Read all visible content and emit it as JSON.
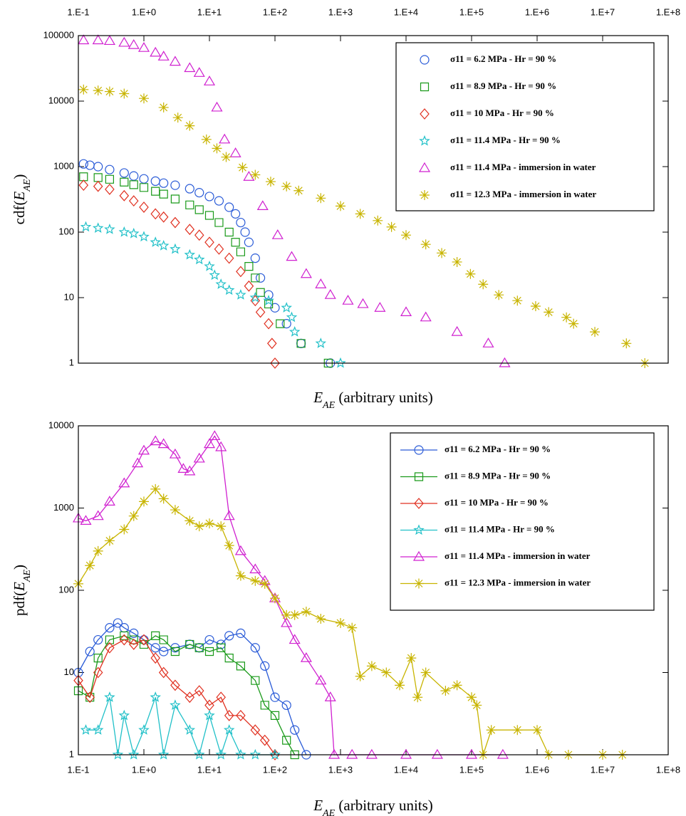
{
  "chart_data": [
    {
      "type": "scatter",
      "log_x": true,
      "log_y": true,
      "x_tick_position": "top",
      "legend_position": "upper right",
      "x_label": [
        "E",
        "AE",
        " (arbitrary units)"
      ],
      "y_label": [
        "cdf(",
        "E",
        "AE",
        ")"
      ],
      "xlim": [
        0.1,
        100000000
      ],
      "ylim": [
        1,
        100000
      ],
      "xticks": [
        {
          "value": 0.1,
          "label": "1.E-1"
        },
        {
          "value": 1,
          "label": "1.E+0"
        },
        {
          "value": 10,
          "label": "1.E+1"
        },
        {
          "value": 100,
          "label": "1.E+2"
        },
        {
          "value": 1000,
          "label": "1.E+3"
        },
        {
          "value": 10000,
          "label": "1.E+4"
        },
        {
          "value": 100000,
          "label": "1.E+5"
        },
        {
          "value": 1000000,
          "label": "1.E+6"
        },
        {
          "value": 10000000,
          "label": "1.E+7"
        },
        {
          "value": 100000000,
          "label": "1.E+8"
        }
      ],
      "yticks": [
        1,
        10,
        100,
        1000,
        10000,
        100000
      ],
      "series": [
        {
          "name": "σ11 = 6.2 MPa - Hr = 90 %",
          "color": "#2a5bd7",
          "marker": "circle",
          "line": false,
          "x": [
            0.12,
            0.15,
            0.2,
            0.3,
            0.5,
            0.7,
            1,
            1.5,
            2,
            3,
            5,
            7,
            10,
            14,
            20,
            25,
            30,
            35,
            40,
            50,
            60,
            80,
            100,
            150,
            250,
            700
          ],
          "values": [
            1100,
            1050,
            1000,
            900,
            800,
            720,
            650,
            600,
            560,
            520,
            460,
            400,
            350,
            300,
            240,
            190,
            140,
            100,
            70,
            40,
            20,
            11,
            7,
            4,
            2,
            1
          ]
        },
        {
          "name": "σ11 = 8.9 MPa - Hr = 90 %",
          "color": "#1a9a1a",
          "marker": "square",
          "line": false,
          "x": [
            0.12,
            0.2,
            0.3,
            0.5,
            0.7,
            1,
            1.5,
            2,
            3,
            5,
            7,
            10,
            14,
            20,
            25,
            30,
            40,
            50,
            60,
            80,
            120,
            250,
            650
          ],
          "values": [
            700,
            680,
            640,
            580,
            530,
            480,
            420,
            380,
            320,
            260,
            220,
            180,
            140,
            100,
            70,
            50,
            30,
            20,
            12,
            8,
            4,
            2,
            1
          ]
        },
        {
          "name": "σ11 = 10 MPa - Hr = 90 %",
          "color": "#e03020",
          "marker": "diamond",
          "line": false,
          "x": [
            0.12,
            0.2,
            0.3,
            0.5,
            0.7,
            1,
            1.5,
            2,
            3,
            5,
            7,
            10,
            14,
            20,
            30,
            40,
            50,
            60,
            80,
            90,
            100
          ],
          "values": [
            520,
            500,
            450,
            360,
            300,
            240,
            190,
            170,
            140,
            110,
            90,
            70,
            55,
            40,
            25,
            15,
            9,
            6,
            4,
            2,
            1
          ]
        },
        {
          "name": "σ11 = 11.4 MPa - Hr = 90 %",
          "color": "#20c0c8",
          "marker": "star",
          "line": false,
          "x": [
            0.13,
            0.2,
            0.3,
            0.5,
            0.7,
            1,
            1.5,
            2,
            3,
            5,
            7,
            10,
            12,
            15,
            20,
            30,
            50,
            80,
            150,
            180,
            200,
            500,
            1000
          ],
          "values": [
            120,
            115,
            110,
            100,
            95,
            85,
            70,
            62,
            55,
            45,
            38,
            30,
            22,
            16,
            13,
            11,
            10,
            9,
            7,
            5,
            3,
            2,
            1
          ]
        },
        {
          "name": "σ11 = 11.4 MPa - immersion in water",
          "color": "#d020d0",
          "marker": "triangle",
          "line": false,
          "x": [
            0.12,
            0.2,
            0.3,
            0.5,
            0.7,
            1,
            1.5,
            2,
            3,
            5,
            7,
            10,
            13,
            17,
            25,
            40,
            65,
            110,
            180,
            300,
            500,
            700,
            1300,
            2200,
            4000,
            10000,
            20000,
            60000,
            180000,
            320000
          ],
          "values": [
            85000,
            85000,
            83000,
            78000,
            72000,
            65000,
            55000,
            48000,
            40000,
            32000,
            27000,
            20000,
            8000,
            2600,
            1600,
            700,
            250,
            90,
            42,
            23,
            16,
            11,
            9,
            8,
            7,
            6,
            5,
            3,
            2,
            1
          ]
        },
        {
          "name": "σ11 = 12.3 MPa - immersion in water",
          "color": "#c8b400",
          "marker": "asterisk",
          "line": false,
          "x": [
            0.12,
            0.2,
            0.3,
            0.5,
            1,
            2,
            3.3,
            5,
            9,
            13,
            18,
            32,
            50,
            86,
            150,
            230,
            500,
            1000,
            2000,
            3700,
            6000,
            10000,
            20000,
            35000,
            60000,
            96000,
            150000,
            260000,
            500000,
            950000,
            1500000,
            2800000,
            3600000,
            7600000,
            23000000,
            44000000
          ],
          "values": [
            15000,
            14500,
            14000,
            13000,
            11000,
            8000,
            5600,
            4200,
            2600,
            1900,
            1400,
            970,
            750,
            590,
            500,
            430,
            330,
            250,
            190,
            150,
            120,
            90,
            65,
            48,
            35,
            23,
            16,
            11,
            9,
            7.4,
            6,
            5,
            4,
            3,
            2,
            1
          ]
        }
      ]
    },
    {
      "type": "line",
      "log_x": true,
      "log_y": true,
      "x_tick_position": "bottom",
      "legend_position": "upper right",
      "x_label": [
        "E",
        "AE",
        " (arbitrary units)"
      ],
      "y_label": [
        "pdf(",
        "E",
        "AE",
        ")"
      ],
      "xlim": [
        0.1,
        100000000
      ],
      "ylim": [
        1,
        10000
      ],
      "xticks": [
        {
          "value": 0.1,
          "label": "1.E-1"
        },
        {
          "value": 1,
          "label": "1.E+0"
        },
        {
          "value": 10,
          "label": "1.E+1"
        },
        {
          "value": 100,
          "label": "1.E+2"
        },
        {
          "value": 1000,
          "label": "1.E+3"
        },
        {
          "value": 10000,
          "label": "1.E+4"
        },
        {
          "value": 100000,
          "label": "1.E+5"
        },
        {
          "value": 1000000,
          "label": "1.E+6"
        },
        {
          "value": 10000000,
          "label": "1.E+7"
        },
        {
          "value": 100000000,
          "label": "1.E+8"
        }
      ],
      "yticks": [
        1,
        10,
        100,
        1000,
        10000
      ],
      "series": [
        {
          "name": "σ11 = 6.2 MPa - Hr = 90 %",
          "color": "#2a5bd7",
          "marker": "circle",
          "line": true,
          "x": [
            0.1,
            0.15,
            0.2,
            0.3,
            0.4,
            0.5,
            0.7,
            1,
            1.5,
            2,
            3,
            5,
            7,
            10,
            15,
            20,
            30,
            50,
            70,
            100,
            150,
            200,
            300
          ],
          "values": [
            10,
            18,
            25,
            35,
            40,
            35,
            30,
            25,
            20,
            18,
            20,
            22,
            20,
            25,
            22,
            28,
            30,
            20,
            12,
            5,
            4,
            2,
            1
          ]
        },
        {
          "name": "σ11 = 8.9 MPa - Hr = 90 %",
          "color": "#1a9a1a",
          "marker": "square",
          "line": true,
          "x": [
            0.1,
            0.15,
            0.2,
            0.3,
            0.5,
            0.7,
            1,
            1.5,
            2,
            3,
            5,
            7,
            10,
            15,
            20,
            30,
            50,
            70,
            100,
            150,
            200
          ],
          "values": [
            6,
            5,
            15,
            25,
            28,
            25,
            22,
            28,
            25,
            18,
            22,
            20,
            18,
            20,
            15,
            12,
            8,
            4,
            3,
            1.5,
            1
          ]
        },
        {
          "name": "σ11 = 10 MPa - Hr = 90 %",
          "color": "#e03020",
          "marker": "diamond",
          "line": true,
          "x": [
            0.1,
            0.15,
            0.2,
            0.3,
            0.5,
            0.7,
            1,
            1.5,
            2,
            3,
            5,
            7,
            10,
            15,
            20,
            30,
            50,
            70,
            100
          ],
          "values": [
            8,
            5,
            10,
            20,
            25,
            22,
            25,
            15,
            10,
            7,
            5,
            6,
            4,
            5,
            3,
            3,
            2,
            1.5,
            1
          ]
        },
        {
          "name": "σ11 = 11.4 MPa - Hr = 90 %",
          "color": "#20c0c8",
          "marker": "star",
          "line": true,
          "x": [
            0.13,
            0.2,
            0.3,
            0.4,
            0.5,
            0.7,
            1,
            1.5,
            2,
            3,
            5,
            7,
            10,
            15,
            20,
            30,
            50,
            100
          ],
          "values": [
            2,
            2,
            5,
            1,
            3,
            1,
            2,
            5,
            1,
            4,
            2,
            1,
            3,
            1,
            2,
            1,
            1,
            1
          ]
        },
        {
          "name": "σ11 = 11.4 MPa - immersion in water",
          "color": "#d020d0",
          "marker": "triangle",
          "line": true,
          "x": [
            0.1,
            0.13,
            0.2,
            0.3,
            0.5,
            0.8,
            1,
            1.5,
            2,
            3,
            4,
            5,
            7,
            10,
            12,
            15,
            20,
            30,
            50,
            70,
            100,
            150,
            200,
            300,
            500,
            700,
            800,
            1500,
            3000,
            10000,
            30000,
            100000,
            300000
          ],
          "values": [
            750,
            700,
            800,
            1200,
            2000,
            3500,
            5000,
            6500,
            6000,
            4500,
            3000,
            2800,
            4000,
            6000,
            7500,
            5500,
            800,
            300,
            180,
            130,
            80,
            40,
            25,
            15,
            8,
            5,
            1,
            1,
            1,
            1,
            1,
            1,
            1
          ]
        },
        {
          "name": "σ11 = 12.3 MPa - immersion in water",
          "color": "#c8b400",
          "marker": "asterisk",
          "line": true,
          "x": [
            0.1,
            0.15,
            0.2,
            0.3,
            0.5,
            0.7,
            1,
            1.5,
            2,
            3,
            5,
            7,
            10,
            15,
            20,
            30,
            50,
            70,
            100,
            150,
            200,
            300,
            500,
            1000,
            1500,
            2000,
            3000,
            5000,
            8000,
            12000,
            15000,
            20000,
            40000,
            60000,
            100000,
            120000,
            150000,
            200000,
            500000,
            1000000,
            1500000,
            3000000,
            10000000,
            20000000
          ],
          "values": [
            120,
            200,
            300,
            400,
            550,
            800,
            1200,
            1700,
            1300,
            950,
            700,
            600,
            650,
            600,
            350,
            150,
            130,
            120,
            80,
            50,
            50,
            55,
            45,
            40,
            35,
            9,
            12,
            10,
            7,
            15,
            5,
            10,
            6,
            7,
            5,
            4,
            1,
            2,
            2,
            2,
            1,
            1,
            1,
            1
          ]
        }
      ]
    }
  ]
}
